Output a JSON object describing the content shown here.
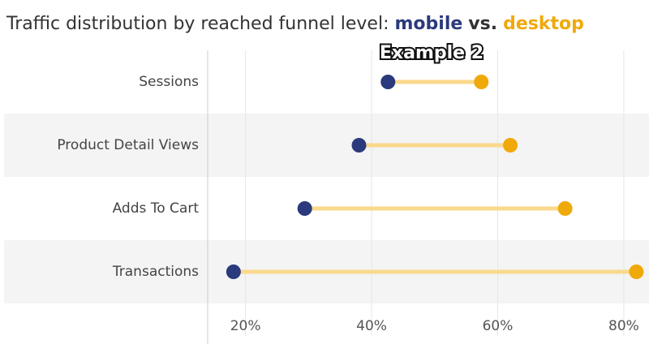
{
  "chart_data": {
    "type": "dumbbell",
    "title": "Traffic distribution by reached funnel level:",
    "title_connector": "vs.",
    "annotation": "Example 2",
    "categories": [
      "Sessions",
      "Product Detail Views",
      "Adds To Cart",
      "Transactions"
    ],
    "series": [
      {
        "name": "mobile",
        "color": "#2b3a7c",
        "values": [
          42.6,
          38,
          29.4,
          18.1
        ]
      },
      {
        "name": "desktop",
        "color": "#f0a90b",
        "values": [
          57.4,
          62,
          70.7,
          82
        ]
      }
    ],
    "connector_color": "#f9d98c",
    "xlim": [
      14,
      84
    ],
    "xticks": [
      {
        "value": 20,
        "label": "20%"
      },
      {
        "value": 40,
        "label": "40%"
      },
      {
        "value": 60,
        "label": "60%"
      },
      {
        "value": 80,
        "label": "80%"
      }
    ],
    "grid": true
  }
}
